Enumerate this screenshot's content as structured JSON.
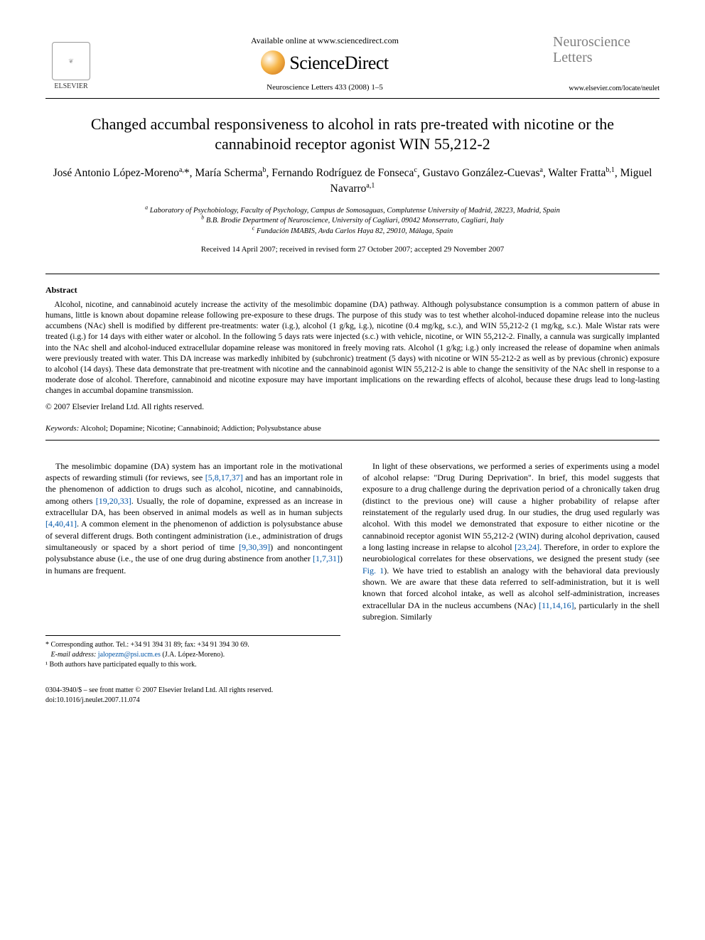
{
  "header": {
    "publisher_label": "ELSEVIER",
    "available_text": "Available online at www.sciencedirect.com",
    "sd_name": "ScienceDirect",
    "journal_ref": "Neuroscience Letters 433 (2008) 1–5",
    "journal_name_line1": "Neuroscience",
    "journal_name_line2": "Letters",
    "journal_url": "www.elsevier.com/locate/neulet"
  },
  "title": "Changed accumbal responsiveness to alcohol in rats pre-treated with nicotine or the cannabinoid receptor agonist WIN 55,212-2",
  "authors_html": "José Antonio López-Moreno<sup>a,</sup>*, María Scherma<sup>b</sup>, Fernando Rodríguez de Fonseca<sup>c</sup>, Gustavo González-Cuevas<sup>a</sup>, Walter Fratta<sup>b,1</sup>, Miguel Navarro<sup>a,1</sup>",
  "affiliations": {
    "a": "Laboratory of Psychobiology, Faculty of Psychology, Campus de Somosaguas, Complutense University of Madrid, 28223, Madrid, Spain",
    "b": "B.B. Brodie Department of Neuroscience, University of Cagliari, 09042 Monserrato, Cagliari, Italy",
    "c": "Fundación IMABIS, Avda Carlos Haya 82, 29010, Málaga, Spain"
  },
  "dates": "Received 14 April 2007; received in revised form 27 October 2007; accepted 29 November 2007",
  "abstract": {
    "heading": "Abstract",
    "body": "Alcohol, nicotine, and cannabinoid acutely increase the activity of the mesolimbic dopamine (DA) pathway. Although polysubstance consumption is a common pattern of abuse in humans, little is known about dopamine release following pre-exposure to these drugs. The purpose of this study was to test whether alcohol-induced dopamine release into the nucleus accumbens (NAc) shell is modified by different pre-treatments: water (i.g.), alcohol (1 g/kg, i.g.), nicotine (0.4 mg/kg, s.c.), and WIN 55,212-2 (1 mg/kg, s.c.). Male Wistar rats were treated (i.g.) for 14 days with either water or alcohol. In the following 5 days rats were injected (s.c.) with vehicle, nicotine, or WIN 55,212-2. Finally, a cannula was surgically implanted into the NAc shell and alcohol-induced extracellular dopamine release was monitored in freely moving rats. Alcohol (1 g/kg; i.g.) only increased the release of dopamine when animals were previously treated with water. This DA increase was markedly inhibited by (subchronic) treatment (5 days) with nicotine or WIN 55-212-2 as well as by previous (chronic) exposure to alcohol (14 days). These data demonstrate that pre-treatment with nicotine and the cannabinoid agonist WIN 55,212-2 is able to change the sensitivity of the NAc shell in response to a moderate dose of alcohol. Therefore, cannabinoid and nicotine exposure may have important implications on the rewarding effects of alcohol, because these drugs lead to long-lasting changes in accumbal dopamine transmission.",
    "copyright": "© 2007 Elsevier Ireland Ltd. All rights reserved."
  },
  "keywords": {
    "label": "Keywords:",
    "text": " Alcohol; Dopamine; Nicotine; Cannabinoid; Addiction; Polysubstance abuse"
  },
  "body": {
    "left_html": "The mesolimbic dopamine (DA) system has an important role in the motivational aspects of rewarding stimuli (for reviews, see <span class=\"cite\">[5,8,17,37]</span> and has an important role in the phenomenon of addiction to drugs such as alcohol, nicotine, and cannabinoids, among others <span class=\"cite\">[19,20,33]</span>. Usually, the role of dopamine, expressed as an increase in extracellular DA, has been observed in animal models as well as in human subjects <span class=\"cite\">[4,40,41]</span>. A common element in the phenomenon of addiction is polysubstance abuse of several different drugs. Both contingent administration (i.e., administration of drugs simultaneously or spaced by a short period of time <span class=\"cite\">[9,30,39]</span>) and noncontingent polysubstance abuse (i.e., the use of one drug during abstinence from another <span class=\"cite\">[1,7,31]</span>) in humans are frequent.",
    "right_html": "In light of these observations, we performed a series of experiments using a model of alcohol relapse: \"Drug During Deprivation\". In brief, this model suggests that exposure to a drug challenge during the deprivation period of a chronically taken drug (distinct to the previous one) will cause a higher probability of relapse after reinstatement of the regularly used drug. In our studies, the drug used regularly was alcohol. With this model we demonstrated that exposure to either nicotine or the cannabinoid receptor agonist WIN 55,212-2 (WIN) during alcohol deprivation, caused a long lasting increase in relapse to alcohol <span class=\"cite\">[23,24]</span>. Therefore, in order to explore the neurobiological correlates for these observations, we designed the present study (see <span class=\"cite\">Fig. 1</span>). We have tried to establish an analogy with the behavioral data previously shown. We are aware that these data referred to self-administration, but it is well known that forced alcohol intake, as well as alcohol self-administration, increases extracellular DA in the nucleus accumbens (NAc) <span class=\"cite\">[11,14,16]</span>, particularly in the shell subregion. Similarly"
  },
  "footnotes": {
    "corresponding": "* Corresponding author. Tel.: +34 91 394 31 89; fax: +34 91 394 30 69.",
    "email_label": "E-mail address:",
    "email": "jalopezm@psi.ucm.es",
    "email_tail": " (J.A. López-Moreno).",
    "note1": "¹ Both authors have participated equally to this work."
  },
  "bottom": {
    "issn_line": "0304-3940/$ – see front matter © 2007 Elsevier Ireland Ltd. All rights reserved.",
    "doi": "doi:10.1016/j.neulet.2007.11.074"
  },
  "colors": {
    "citation": "#0054a6",
    "journal_gray": "#7f7f7f",
    "orb_light": "#f7b74a",
    "orb_dark": "#c86b12"
  }
}
